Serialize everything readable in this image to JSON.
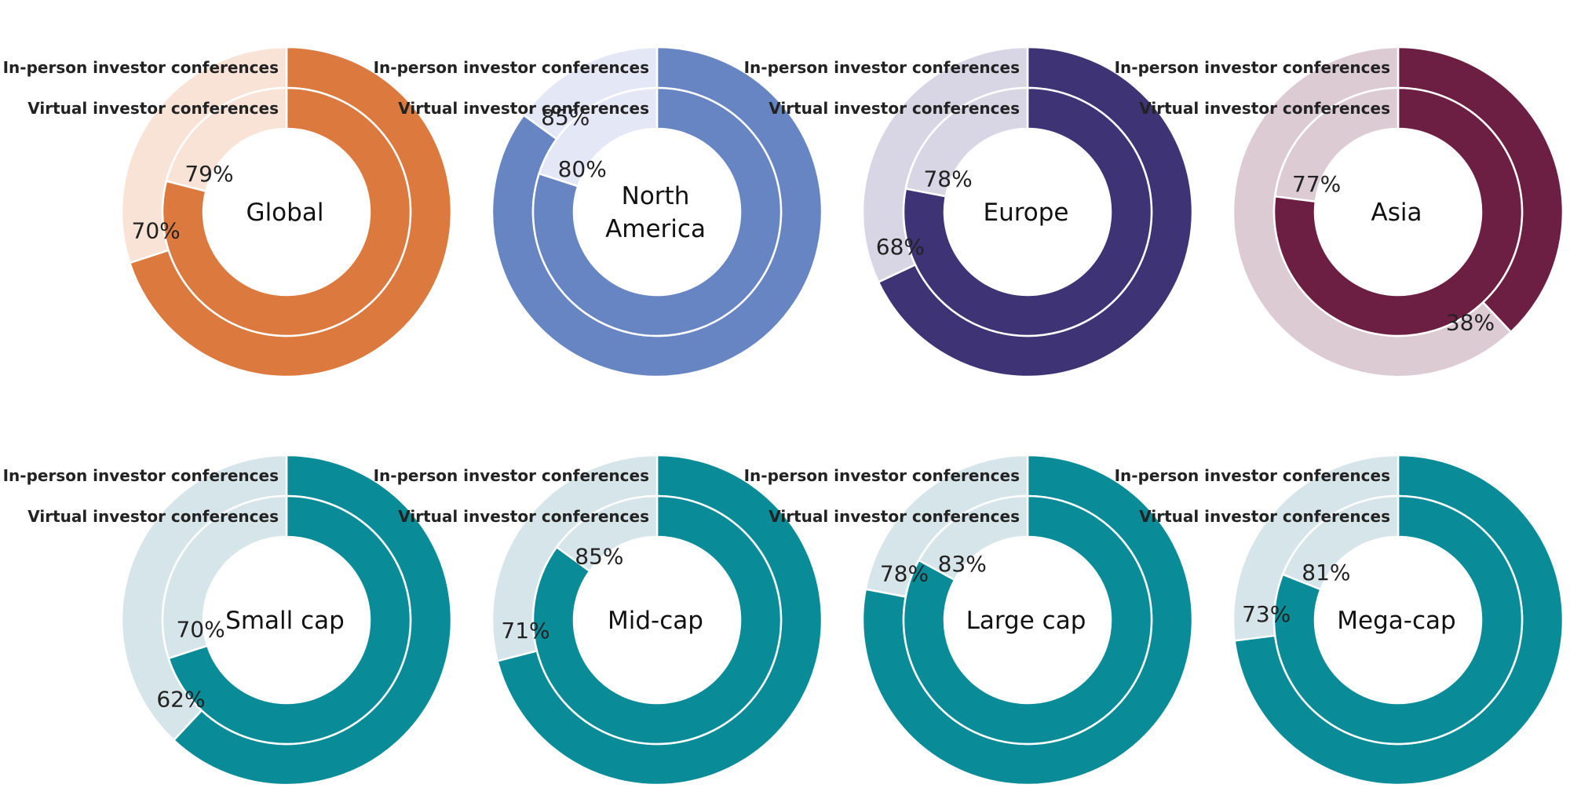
{
  "chart_data": {
    "type": "pie",
    "series_labels": {
      "outer": "In-person investor conferences",
      "inner": "Virtual investor conferences"
    },
    "charts": [
      {
        "name": "Global",
        "lines": [
          "Global"
        ],
        "outer": 70,
        "inner": 79,
        "colors": {
          "main": "#DC793E",
          "rest": "#F8E3D6"
        }
      },
      {
        "name": "North America",
        "lines": [
          "North",
          "America"
        ],
        "outer": 85,
        "inner": 80,
        "colors": {
          "main": "#6784C3",
          "rest": "#E4E7F5"
        }
      },
      {
        "name": "Europe",
        "lines": [
          "Europe"
        ],
        "outer": 68,
        "inner": 78,
        "colors": {
          "main": "#3E3374",
          "rest": "#D8D5E5"
        }
      },
      {
        "name": "Asia",
        "lines": [
          "Asia"
        ],
        "outer": 38,
        "inner": 77,
        "colors": {
          "main": "#6C1E43",
          "rest": "#DCCBD3"
        }
      },
      {
        "name": "Small cap",
        "lines": [
          "Small cap"
        ],
        "outer": 62,
        "inner": 70,
        "colors": {
          "main": "#0A8C98",
          "rest": "#D6E5EA"
        }
      },
      {
        "name": "Mid-cap",
        "lines": [
          "Mid-cap"
        ],
        "outer": 71,
        "inner": 85,
        "colors": {
          "main": "#0A8C98",
          "rest": "#D6E5EA"
        }
      },
      {
        "name": "Large cap",
        "lines": [
          "Large cap"
        ],
        "outer": 78,
        "inner": 83,
        "colors": {
          "main": "#0A8C98",
          "rest": "#D6E5EA"
        }
      },
      {
        "name": "Mega-cap",
        "lines": [
          "Mega-cap"
        ],
        "outer": 73,
        "inner": 81,
        "colors": {
          "main": "#0A8C98",
          "rest": "#D6E5EA"
        }
      }
    ]
  }
}
